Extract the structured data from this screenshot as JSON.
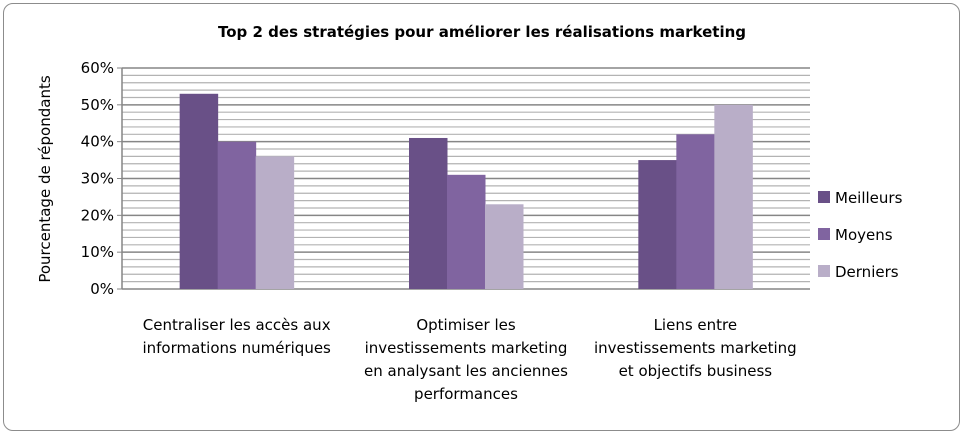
{
  "chart_data": {
    "type": "bar",
    "title": "Top 2 des stratégies pour améliorer les réalisations marketing",
    "xlabel": "",
    "ylabel": "Pourcentage de répondants",
    "ylim": [
      0,
      60
    ],
    "yticks": [
      "0%",
      "10%",
      "20%",
      "30%",
      "40%",
      "50%",
      "60%"
    ],
    "grid": "major every 10%, minor every 2%",
    "legend_position": "right",
    "categories": [
      [
        "Centraliser les accès aux",
        "informations numériques"
      ],
      [
        "Optimiser les",
        "investissements marketing",
        "en analysant les anciennes",
        "performances"
      ],
      [
        "Liens entre",
        "investissements marketing",
        "et objectifs business"
      ]
    ],
    "series": [
      {
        "name": "Meilleurs",
        "color": "#695087",
        "values": [
          53,
          41,
          35
        ]
      },
      {
        "name": "Moyens",
        "color": "#8064a0",
        "values": [
          40,
          31,
          42
        ]
      },
      {
        "name": "Derniers",
        "color": "#b9aec8",
        "values": [
          36,
          23,
          50
        ]
      }
    ]
  }
}
